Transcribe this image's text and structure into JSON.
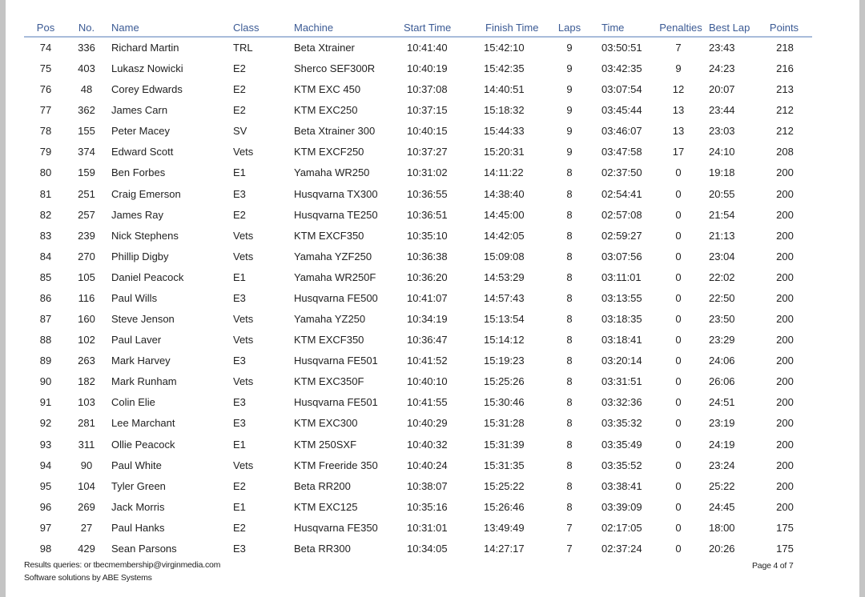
{
  "columns": [
    "Pos",
    "No.",
    "Name",
    "Class",
    "Machine",
    "Start Time",
    "Finish Time",
    "Laps",
    "Time",
    "Penalties",
    "Best Lap",
    "Points"
  ],
  "rows": [
    [
      "74",
      "336",
      "Richard Martin",
      "TRL",
      "Beta Xtrainer",
      "10:41:40",
      "15:42:10",
      "9",
      "03:50:51",
      "7",
      "23:43",
      "218"
    ],
    [
      "75",
      "403",
      "Lukasz Nowicki",
      "E2",
      "Sherco SEF300R",
      "10:40:19",
      "15:42:35",
      "9",
      "03:42:35",
      "9",
      "24:23",
      "216"
    ],
    [
      "76",
      "48",
      "Corey Edwards",
      "E2",
      "KTM EXC 450",
      "10:37:08",
      "14:40:51",
      "9",
      "03:07:54",
      "12",
      "20:07",
      "213"
    ],
    [
      "77",
      "362",
      "James Carn",
      "E2",
      "KTM EXC250",
      "10:37:15",
      "15:18:32",
      "9",
      "03:45:44",
      "13",
      "23:44",
      "212"
    ],
    [
      "78",
      "155",
      "Peter Macey",
      "SV",
      "Beta Xtrainer 300",
      "10:40:15",
      "15:44:33",
      "9",
      "03:46:07",
      "13",
      "23:03",
      "212"
    ],
    [
      "79",
      "374",
      "Edward Scott",
      "Vets",
      "KTM EXCF250",
      "10:37:27",
      "15:20:31",
      "9",
      "03:47:58",
      "17",
      "24:10",
      "208"
    ],
    [
      "80",
      "159",
      "Ben Forbes",
      "E1",
      "Yamaha WR250",
      "10:31:02",
      "14:11:22",
      "8",
      "02:37:50",
      "0",
      "19:18",
      "200"
    ],
    [
      "81",
      "251",
      "Craig Emerson",
      "E3",
      "Husqvarna TX300",
      "10:36:55",
      "14:38:40",
      "8",
      "02:54:41",
      "0",
      "20:55",
      "200"
    ],
    [
      "82",
      "257",
      "James Ray",
      "E2",
      "Husqvarna TE250",
      "10:36:51",
      "14:45:00",
      "8",
      "02:57:08",
      "0",
      "21:54",
      "200"
    ],
    [
      "83",
      "239",
      "Nick Stephens",
      "Vets",
      "KTM EXCF350",
      "10:35:10",
      "14:42:05",
      "8",
      "02:59:27",
      "0",
      "21:13",
      "200"
    ],
    [
      "84",
      "270",
      "Phillip Digby",
      "Vets",
      "Yamaha YZF250",
      "10:36:38",
      "15:09:08",
      "8",
      "03:07:56",
      "0",
      "23:04",
      "200"
    ],
    [
      "85",
      "105",
      "Daniel Peacock",
      "E1",
      "Yamaha WR250F",
      "10:36:20",
      "14:53:29",
      "8",
      "03:11:01",
      "0",
      "22:02",
      "200"
    ],
    [
      "86",
      "116",
      "Paul Wills",
      "E3",
      "Husqvarna FE500",
      "10:41:07",
      "14:57:43",
      "8",
      "03:13:55",
      "0",
      "22:50",
      "200"
    ],
    [
      "87",
      "160",
      "Steve Jenson",
      "Vets",
      "Yamaha YZ250",
      "10:34:19",
      "15:13:54",
      "8",
      "03:18:35",
      "0",
      "23:50",
      "200"
    ],
    [
      "88",
      "102",
      "Paul Laver",
      "Vets",
      "KTM EXCF350",
      "10:36:47",
      "15:14:12",
      "8",
      "03:18:41",
      "0",
      "23:29",
      "200"
    ],
    [
      "89",
      "263",
      "Mark Harvey",
      "E3",
      "Husqvarna FE501",
      "10:41:52",
      "15:19:23",
      "8",
      "03:20:14",
      "0",
      "24:06",
      "200"
    ],
    [
      "90",
      "182",
      "Mark Runham",
      "Vets",
      "KTM EXC350F",
      "10:40:10",
      "15:25:26",
      "8",
      "03:31:51",
      "0",
      "26:06",
      "200"
    ],
    [
      "91",
      "103",
      "Colin Elie",
      "E3",
      "Husqvarna FE501",
      "10:41:55",
      "15:30:46",
      "8",
      "03:32:36",
      "0",
      "24:51",
      "200"
    ],
    [
      "92",
      "281",
      "Lee Marchant",
      "E3",
      "KTM EXC300",
      "10:40:29",
      "15:31:28",
      "8",
      "03:35:32",
      "0",
      "23:19",
      "200"
    ],
    [
      "93",
      "311",
      "Ollie Peacock",
      "E1",
      "KTM 250SXF",
      "10:40:32",
      "15:31:39",
      "8",
      "03:35:49",
      "0",
      "24:19",
      "200"
    ],
    [
      "94",
      "90",
      "Paul White",
      "Vets",
      "KTM Freeride 350",
      "10:40:24",
      "15:31:35",
      "8",
      "03:35:52",
      "0",
      "23:24",
      "200"
    ],
    [
      "95",
      "104",
      "Tyler Green",
      "E2",
      "Beta RR200",
      "10:38:07",
      "15:25:22",
      "8",
      "03:38:41",
      "0",
      "25:22",
      "200"
    ],
    [
      "96",
      "269",
      "Jack Morris",
      "E1",
      "KTM EXC125",
      "10:35:16",
      "15:26:46",
      "8",
      "03:39:09",
      "0",
      "24:45",
      "200"
    ],
    [
      "97",
      "27",
      "Paul Hanks",
      "E2",
      "Husqvarna FE350",
      "10:31:01",
      "13:49:49",
      "7",
      "02:17:05",
      "0",
      "18:00",
      "175"
    ],
    [
      "98",
      "429",
      "Sean Parsons",
      "E3",
      "Beta RR300",
      "10:34:05",
      "14:27:17",
      "7",
      "02:37:24",
      "0",
      "20:26",
      "175"
    ]
  ],
  "footer": {
    "queries": "Results queries:   or tbecmembership@virginmedia.com",
    "software": "Software solutions by ABE Systems",
    "page": "Page 4 of 7"
  },
  "colors": {
    "header_text": "#3b5a94",
    "rule": "#a8bcda"
  }
}
